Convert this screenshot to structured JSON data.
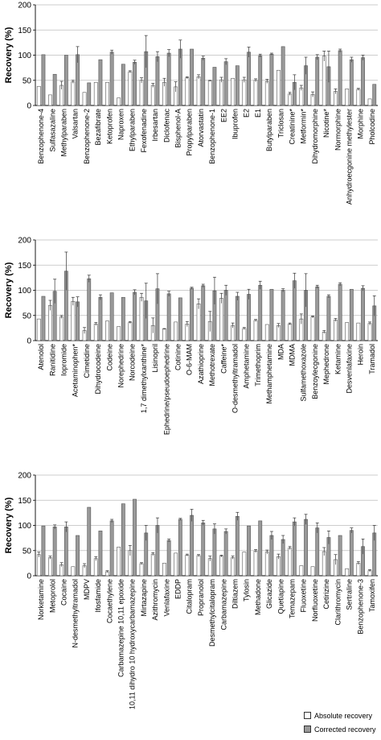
{
  "chart_data": [
    {
      "type": "bar",
      "ylabel": "Recovery (%)",
      "ylim": [
        0,
        200
      ],
      "yticks": [
        0,
        50,
        100,
        150,
        200
      ],
      "grid": true,
      "categories": [
        "Benzophenone-4",
        "Sulfasazaline",
        "Methylparaben",
        "Valsartan",
        "Benzophenone-2",
        "Bezafibrate",
        "Ketoprofen",
        "Naproxen",
        "Ethylparaben",
        "Fexofenadine",
        "Irbesartan",
        "Diclofenac",
        "Bisphenol-A",
        "Propylparaben",
        "Atorvastatin",
        "Benzophenone-1",
        "EE2",
        "Ibuprofen",
        "E2",
        "E1",
        "Butylparaben",
        "Triclosan",
        "Creatinine*",
        "Metformin*",
        "Dihydromorphine",
        "Nicotine*",
        "Normorphine",
        "Anhydroecgonine methylester",
        "Morphine",
        "Pholcodine"
      ],
      "series": [
        {
          "name": "Absolute recovery",
          "values": [
            38,
            21,
            40,
            47,
            26,
            46,
            46,
            15,
            67,
            50,
            40,
            46,
            37,
            55,
            57,
            49,
            51,
            54,
            51,
            50,
            48,
            70,
            23,
            35,
            22,
            98,
            28,
            33,
            32,
            13
          ],
          "errors": [
            0,
            0,
            8,
            3,
            0,
            0,
            0,
            0,
            2,
            5,
            4,
            8,
            10,
            2,
            4,
            1,
            5,
            0,
            5,
            3,
            4,
            0,
            3,
            5,
            5,
            10,
            5,
            0,
            2,
            0
          ]
        },
        {
          "name": "Corrected recovery",
          "values": [
            101,
            62,
            100,
            101,
            45,
            91,
            106,
            82,
            86,
            107,
            97,
            104,
            112,
            112,
            94,
            76,
            87,
            79,
            106,
            99,
            102,
            117,
            46,
            79,
            96,
            77,
            109,
            91,
            95,
            42
          ],
          "errors": [
            0,
            0,
            0,
            16,
            0,
            0,
            4,
            0,
            4,
            32,
            10,
            7,
            18,
            0,
            4,
            0,
            6,
            0,
            10,
            3,
            2,
            0,
            15,
            17,
            5,
            31,
            3,
            5,
            5,
            0
          ]
        }
      ]
    },
    {
      "type": "bar",
      "ylabel": "Recovery (%)",
      "ylim": [
        0,
        200
      ],
      "yticks": [
        0,
        50,
        100,
        150,
        200
      ],
      "grid": true,
      "categories": [
        "Atenolol",
        "Ranitidine",
        "Iopromide",
        "Acetaminophen*",
        "Cimetidine",
        "Dihydrocodeine",
        "Codeine",
        "Norephedrine",
        "Norcodeine",
        "1,7 dimethylxanthine*",
        "Lisinopril",
        "Ephedrine/pseudoephedrine",
        "Cotinine",
        "O-6-MAM",
        "Azathioprine",
        "Methotrexate",
        "Caffeine*",
        "O-desmethyltramadol",
        "Amphetamine",
        "Trimethoprim",
        "Methamphetamine",
        "MDA",
        "MDMA",
        "Sulfamethoxazole",
        "Benzoylecgonine",
        "Mephedrone",
        "Ketamine",
        "Desvenlafaxine",
        "Heroin",
        "Tramadol"
      ],
      "series": [
        {
          "name": "Absolute recovery",
          "values": [
            43,
            70,
            47,
            78,
            20,
            33,
            39,
            28,
            36,
            86,
            30,
            23,
            37,
            33,
            73,
            38,
            84,
            30,
            24,
            40,
            32,
            30,
            33,
            43,
            47,
            17,
            41,
            36,
            35,
            34
          ],
          "errors": [
            0,
            10,
            3,
            8,
            6,
            3,
            0,
            0,
            2,
            8,
            15,
            1,
            0,
            5,
            10,
            20,
            10,
            5,
            2,
            2,
            0,
            4,
            2,
            10,
            2,
            3,
            3,
            0,
            0,
            3
          ]
        },
        {
          "name": "Corrected recovery",
          "values": [
            88,
            98,
            138,
            77,
            123,
            86,
            95,
            86,
            96,
            79,
            103,
            93,
            85,
            104,
            109,
            99,
            100,
            88,
            92,
            110,
            102,
            100,
            119,
            100,
            107,
            88,
            112,
            102,
            104,
            69
          ],
          "errors": [
            0,
            24,
            38,
            10,
            7,
            5,
            0,
            0,
            5,
            35,
            30,
            5,
            0,
            2,
            3,
            27,
            10,
            8,
            10,
            8,
            0,
            3,
            15,
            33,
            3,
            3,
            3,
            0,
            5,
            20
          ]
        }
      ]
    },
    {
      "type": "bar",
      "ylabel": "Recovery (%)",
      "ylim": [
        0,
        200
      ],
      "yticks": [
        0,
        50,
        100,
        150,
        200
      ],
      "grid": true,
      "categories": [
        "Norketamine",
        "Metoprolol",
        "Cocaine",
        "N-desmethyltramadol",
        "MDPV",
        "Ifosfamide",
        "Cocaethylene",
        "Carbamazepine 10,11 epoxide",
        "10,11 dihydro 10 hydroxycarbamazepine",
        "Mirtazapine",
        "Azithromycin",
        "Venlafaxine",
        "EDDP",
        "Citalopram",
        "Propranolol",
        "Desmethylcitalopram",
        "Carbamazepine",
        "Diltiazem",
        "Tylosin",
        "Methadone",
        "Glicazide",
        "Quetiapine",
        "Temazepam",
        "Fluoxetine",
        "Norfluoxetine",
        "Cetirizine",
        "Clarithromycin",
        "Sertraline",
        "Benzophenone-3",
        "Tamoxifen"
      ],
      "series": [
        {
          "name": "Absolute recovery",
          "values": [
            42,
            36,
            22,
            18,
            20,
            34,
            8,
            57,
            50,
            24,
            43,
            25,
            45,
            41,
            40,
            34,
            39,
            36,
            47,
            49,
            47,
            38,
            55,
            20,
            18,
            48,
            32,
            14,
            25,
            10
          ],
          "errors": [
            5,
            3,
            4,
            0,
            4,
            4,
            2,
            0,
            10,
            2,
            3,
            0,
            0,
            2,
            2,
            5,
            2,
            3,
            0,
            3,
            4,
            5,
            3,
            0,
            0,
            8,
            10,
            0,
            3,
            2
          ]
        },
        {
          "name": "Corrected recovery",
          "values": [
            99,
            97,
            97,
            80,
            136,
            89,
            109,
            143,
            152,
            85,
            100,
            70,
            112,
            120,
            105,
            93,
            88,
            118,
            99,
            109,
            80,
            72,
            107,
            112,
            95,
            76,
            80,
            90,
            58,
            85
          ],
          "errors": [
            0,
            4,
            10,
            0,
            0,
            0,
            3,
            0,
            0,
            15,
            15,
            3,
            2,
            12,
            5,
            10,
            5,
            8,
            0,
            0,
            8,
            8,
            8,
            10,
            10,
            13,
            0,
            5,
            15,
            15
          ]
        }
      ]
    }
  ],
  "legend": {
    "absolute_label": "Absolute recovery",
    "corrected_label": "Corrected recovery",
    "absolute_color": "#ffffff",
    "corrected_color": "#999999",
    "placement": "bottom-right"
  }
}
